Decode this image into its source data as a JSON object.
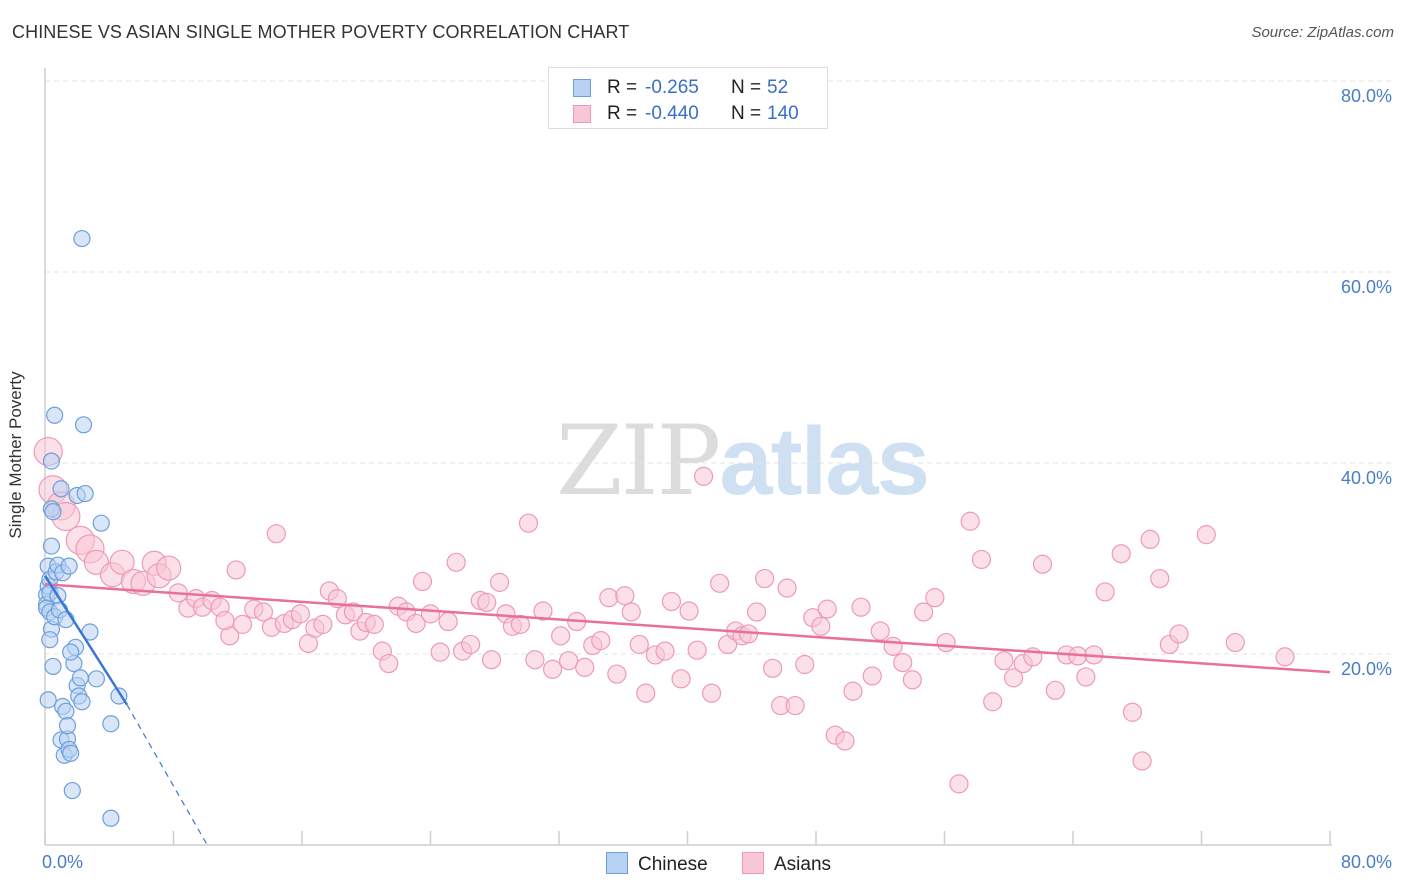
{
  "title": "CHINESE VS ASIAN SINGLE MOTHER POVERTY CORRELATION CHART",
  "source": "Source: ZipAtlas.com",
  "watermark": {
    "part1": "ZIP",
    "part2": "atlas"
  },
  "colors": {
    "chinese_fill": "#b8d2f3",
    "chinese_stroke": "#6e9fdc",
    "chinese_line": "#3a77d4",
    "asians_fill": "#f8c6d6",
    "asians_stroke": "#ee9ab6",
    "asians_line": "#e8709a",
    "tick_text": "#4a7cc9",
    "grid": "#e3e3e3"
  },
  "stats": {
    "chinese": {
      "r_label": "R =",
      "r_value": "-0.265",
      "n_label": "N =",
      "n_value": "52"
    },
    "asians": {
      "r_label": "R =",
      "r_value": "-0.440",
      "n_label": "N =",
      "n_value": "140"
    }
  },
  "chart_data": {
    "type": "scatter",
    "title": "CHINESE VS ASIAN SINGLE MOTHER POVERTY CORRELATION CHART",
    "xlabel": "",
    "ylabel": "Single Mother Poverty",
    "xlim": [
      0,
      80
    ],
    "ylim": [
      0,
      80
    ],
    "x_tick_labels": [
      "0.0%",
      "80.0%"
    ],
    "y_tick_labels": [
      "20.0%",
      "40.0%",
      "60.0%",
      "80.0%"
    ],
    "y_ticks": [
      20,
      40,
      60,
      80
    ],
    "legend": [
      "Chinese",
      "Asians"
    ],
    "series": [
      {
        "name": "Chinese",
        "trend": {
          "x": [
            0,
            5.1
          ],
          "y": [
            28.2,
            14.7
          ],
          "dashed_to": [
            10.1,
            0
          ]
        },
        "points": [
          [
            0.1,
            26.2
          ],
          [
            0.1,
            25.2
          ],
          [
            0.1,
            24.8
          ],
          [
            0.2,
            15.2
          ],
          [
            0.2,
            29.2
          ],
          [
            0.2,
            27.1
          ],
          [
            0.3,
            27.8
          ],
          [
            0.3,
            26.4
          ],
          [
            0.3,
            24.4
          ],
          [
            0.4,
            22.6
          ],
          [
            0.4,
            31.3
          ],
          [
            0.4,
            35.2
          ],
          [
            0.4,
            40.2
          ],
          [
            0.5,
            18.7
          ],
          [
            0.5,
            34.9
          ],
          [
            0.6,
            23.9
          ],
          [
            0.6,
            45.0
          ],
          [
            0.7,
            28.6
          ],
          [
            0.8,
            29.3
          ],
          [
            0.8,
            26.1
          ],
          [
            0.9,
            24.6
          ],
          [
            1.0,
            11.0
          ],
          [
            1.0,
            37.3
          ],
          [
            1.1,
            28.5
          ],
          [
            1.1,
            14.5
          ],
          [
            1.2,
            9.4
          ],
          [
            1.3,
            14.0
          ],
          [
            1.3,
            23.6
          ],
          [
            1.4,
            11.1
          ],
          [
            1.4,
            12.5
          ],
          [
            1.5,
            10.0
          ],
          [
            1.5,
            29.2
          ],
          [
            1.6,
            9.6
          ],
          [
            1.7,
            5.7
          ],
          [
            1.8,
            19.0
          ],
          [
            1.9,
            20.7
          ],
          [
            2.0,
            16.7
          ],
          [
            2.0,
            36.6
          ],
          [
            2.1,
            15.6
          ],
          [
            2.2,
            17.5
          ],
          [
            2.3,
            63.5
          ],
          [
            2.3,
            15.0
          ],
          [
            2.4,
            44.0
          ],
          [
            2.5,
            36.8
          ],
          [
            2.8,
            22.3
          ],
          [
            3.2,
            17.4
          ],
          [
            3.5,
            33.7
          ],
          [
            4.1,
            12.7
          ],
          [
            4.1,
            2.8
          ],
          [
            4.6,
            15.6
          ],
          [
            0.3,
            21.5
          ],
          [
            1.6,
            20.2
          ]
        ]
      },
      {
        "name": "Asians",
        "trend": {
          "x": [
            0,
            80
          ],
          "y": [
            27.3,
            18.1
          ]
        },
        "points": [
          [
            0.2,
            41.2
          ],
          [
            0.5,
            37.2
          ],
          [
            1.0,
            35.5
          ],
          [
            1.3,
            34.4
          ],
          [
            2.2,
            31.9
          ],
          [
            2.8,
            31.0
          ],
          [
            3.2,
            29.6
          ],
          [
            4.2,
            28.3
          ],
          [
            4.8,
            29.6
          ],
          [
            5.5,
            27.6
          ],
          [
            6.1,
            27.4
          ],
          [
            6.8,
            29.5
          ],
          [
            7.1,
            28.2
          ],
          [
            7.7,
            29.0
          ],
          [
            8.3,
            26.4
          ],
          [
            8.9,
            24.8
          ],
          [
            9.4,
            25.8
          ],
          [
            9.8,
            24.9
          ],
          [
            10.4,
            25.6
          ],
          [
            10.9,
            24.9
          ],
          [
            11.5,
            21.9
          ],
          [
            11.9,
            28.8
          ],
          [
            12.3,
            23.1
          ],
          [
            13.0,
            24.7
          ],
          [
            13.6,
            24.4
          ],
          [
            14.1,
            22.8
          ],
          [
            14.4,
            32.6
          ],
          [
            14.9,
            23.2
          ],
          [
            15.4,
            23.6
          ],
          [
            15.9,
            24.2
          ],
          [
            16.4,
            21.1
          ],
          [
            16.8,
            22.7
          ],
          [
            17.3,
            23.1
          ],
          [
            17.7,
            26.6
          ],
          [
            18.2,
            25.8
          ],
          [
            18.7,
            24.1
          ],
          [
            19.2,
            24.4
          ],
          [
            19.6,
            22.4
          ],
          [
            20.0,
            23.3
          ],
          [
            20.5,
            23.1
          ],
          [
            21.0,
            20.3
          ],
          [
            21.4,
            19.0
          ],
          [
            22.0,
            25.0
          ],
          [
            22.5,
            24.4
          ],
          [
            23.1,
            23.2
          ],
          [
            23.5,
            27.6
          ],
          [
            24.0,
            24.2
          ],
          [
            24.6,
            20.2
          ],
          [
            25.1,
            23.4
          ],
          [
            25.6,
            29.6
          ],
          [
            26.0,
            20.3
          ],
          [
            26.5,
            21.0
          ],
          [
            27.1,
            25.6
          ],
          [
            27.5,
            25.4
          ],
          [
            27.8,
            19.4
          ],
          [
            28.3,
            27.5
          ],
          [
            28.7,
            24.2
          ],
          [
            29.1,
            22.9
          ],
          [
            29.6,
            23.1
          ],
          [
            30.1,
            33.7
          ],
          [
            30.5,
            19.4
          ],
          [
            31.0,
            24.5
          ],
          [
            31.6,
            18.4
          ],
          [
            32.1,
            21.9
          ],
          [
            32.6,
            19.3
          ],
          [
            33.1,
            23.4
          ],
          [
            33.6,
            18.6
          ],
          [
            34.1,
            20.9
          ],
          [
            34.6,
            21.4
          ],
          [
            35.1,
            25.9
          ],
          [
            35.6,
            17.9
          ],
          [
            36.1,
            26.1
          ],
          [
            36.5,
            24.4
          ],
          [
            37.0,
            21.0
          ],
          [
            37.4,
            15.9
          ],
          [
            38.0,
            19.9
          ],
          [
            38.6,
            20.3
          ],
          [
            39.0,
            25.5
          ],
          [
            39.6,
            17.4
          ],
          [
            40.1,
            24.5
          ],
          [
            40.6,
            20.4
          ],
          [
            41.0,
            38.6
          ],
          [
            41.5,
            15.9
          ],
          [
            42.0,
            27.4
          ],
          [
            42.5,
            21.0
          ],
          [
            43.0,
            22.4
          ],
          [
            43.4,
            21.9
          ],
          [
            43.8,
            22.1
          ],
          [
            44.3,
            24.4
          ],
          [
            44.8,
            27.9
          ],
          [
            45.3,
            18.5
          ],
          [
            45.8,
            14.6
          ],
          [
            46.2,
            26.9
          ],
          [
            46.7,
            14.6
          ],
          [
            47.3,
            18.9
          ],
          [
            47.8,
            23.8
          ],
          [
            48.3,
            22.9
          ],
          [
            48.7,
            24.7
          ],
          [
            49.2,
            11.5
          ],
          [
            49.8,
            10.9
          ],
          [
            50.3,
            16.1
          ],
          [
            50.8,
            24.9
          ],
          [
            51.5,
            17.7
          ],
          [
            52.0,
            22.4
          ],
          [
            52.8,
            20.8
          ],
          [
            53.4,
            19.1
          ],
          [
            54.0,
            17.3
          ],
          [
            54.7,
            24.4
          ],
          [
            55.4,
            25.9
          ],
          [
            56.1,
            21.2
          ],
          [
            56.9,
            6.4
          ],
          [
            57.6,
            33.9
          ],
          [
            58.3,
            29.9
          ],
          [
            59.0,
            15.0
          ],
          [
            59.7,
            19.3
          ],
          [
            60.3,
            17.5
          ],
          [
            60.9,
            19.0
          ],
          [
            61.5,
            19.7
          ],
          [
            62.1,
            29.4
          ],
          [
            62.9,
            16.2
          ],
          [
            63.6,
            19.9
          ],
          [
            64.3,
            19.8
          ],
          [
            64.8,
            17.6
          ],
          [
            65.3,
            19.9
          ],
          [
            66.0,
            26.5
          ],
          [
            67.0,
            30.5
          ],
          [
            67.7,
            13.9
          ],
          [
            68.3,
            8.8
          ],
          [
            68.8,
            32.0
          ],
          [
            69.4,
            27.9
          ],
          [
            70.0,
            21.0
          ],
          [
            70.6,
            22.1
          ],
          [
            72.3,
            32.5
          ],
          [
            74.1,
            21.2
          ],
          [
            77.2,
            19.7
          ],
          [
            11.2,
            23.5
          ]
        ]
      }
    ]
  }
}
